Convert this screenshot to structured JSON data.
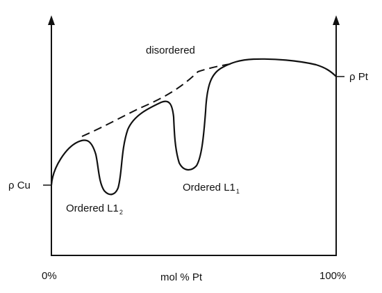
{
  "labels": {
    "disordered": "disordered",
    "rho_cu": "ρ Cu",
    "rho_pt": "ρ Pt",
    "ordered_l12_main": "Ordered L1",
    "ordered_l12_sub": "2",
    "ordered_l11_main": "Ordered L1",
    "ordered_l11_sub": "1"
  },
  "x_axis": {
    "label": "mol % Pt",
    "min_label": "0%",
    "max_label": "100%"
  },
  "colors": {
    "line": "#111111",
    "background": "#ffffff"
  }
}
